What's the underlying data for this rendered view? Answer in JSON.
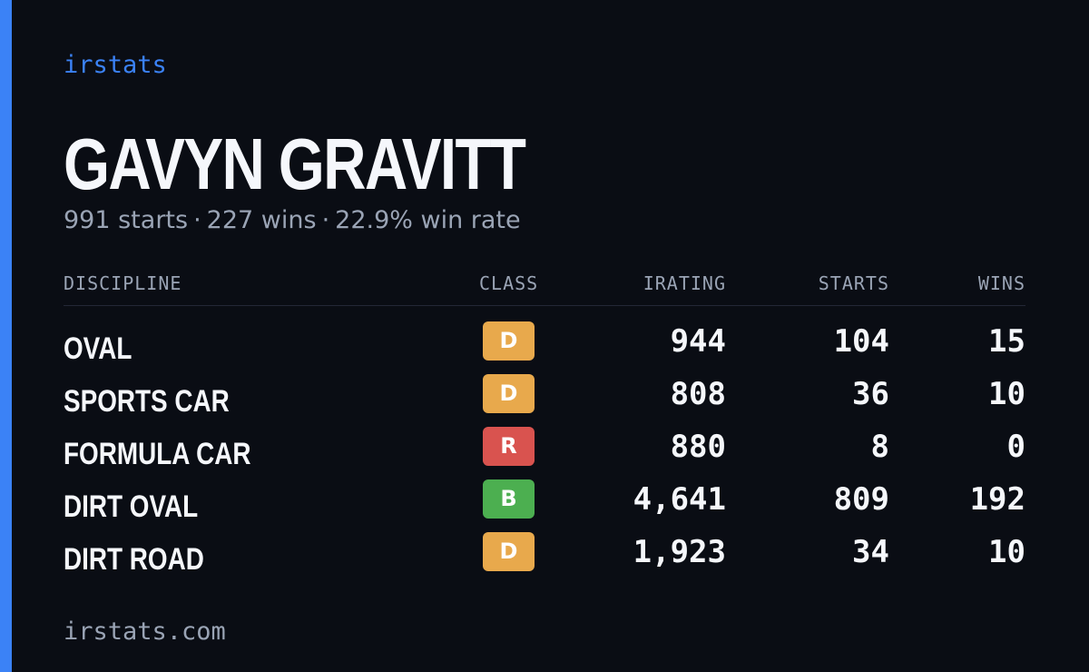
{
  "brand": "irstats",
  "driver": {
    "name": "GAVYN GRAVITT",
    "summary": {
      "starts": "991 starts",
      "wins": "227 wins",
      "win_rate": "22.9% win rate",
      "separator": "·"
    }
  },
  "table": {
    "headers": {
      "discipline": "DISCIPLINE",
      "class": "CLASS",
      "irating": "IRATING",
      "starts": "STARTS",
      "wins": "WINS"
    },
    "rows": [
      {
        "discipline": "OVAL",
        "class": "D",
        "class_color": "#e8a94c",
        "irating": "944",
        "starts": "104",
        "wins": "15"
      },
      {
        "discipline": "SPORTS CAR",
        "class": "D",
        "class_color": "#e8a94c",
        "irating": "808",
        "starts": "36",
        "wins": "10"
      },
      {
        "discipline": "FORMULA CAR",
        "class": "R",
        "class_color": "#d9534f",
        "irating": "880",
        "starts": "8",
        "wins": "0"
      },
      {
        "discipline": "DIRT OVAL",
        "class": "B",
        "class_color": "#4caf50",
        "irating": "4,641",
        "starts": "809",
        "wins": "192"
      },
      {
        "discipline": "DIRT ROAD",
        "class": "D",
        "class_color": "#e8a94c",
        "irating": "1,923",
        "starts": "34",
        "wins": "10"
      }
    ]
  },
  "footer": "irstats.com",
  "colors": {
    "background": "#0a0d14",
    "accent": "#3b82f6",
    "muted_text": "#9aa4b5",
    "primary_text": "#f5f7fb"
  }
}
